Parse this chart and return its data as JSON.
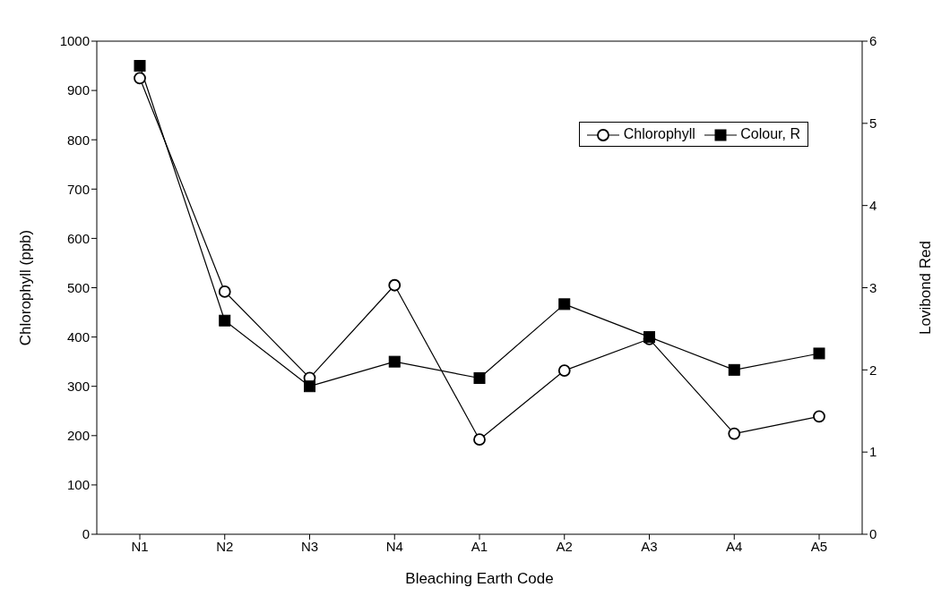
{
  "chart_data": {
    "type": "line",
    "xlabel": "Bleaching Earth Code",
    "ylabel": "Chlorophyll (ppb)",
    "y2label": "Lovibond Red",
    "categories": [
      "N1",
      "N2",
      "N3",
      "N4",
      "A1",
      "A2",
      "A3",
      "A4",
      "A5"
    ],
    "series": [
      {
        "name": "Chlorophyll",
        "color": "#000000",
        "marker": "circle",
        "values": [
          925,
          492,
          317,
          505,
          192,
          332,
          396,
          204,
          239
        ]
      },
      {
        "name": "Colour, R",
        "color": "#000000",
        "marker": "square",
        "axis": "y2",
        "values": [
          5.7,
          2.6,
          1.8,
          2.1,
          1.9,
          2.8,
          2.4,
          2.0,
          2.2
        ]
      }
    ],
    "ylim": [
      0,
      1000
    ],
    "yticks": [
      0,
      100,
      200,
      300,
      400,
      500,
      600,
      700,
      800,
      900,
      1000
    ],
    "y2lim": [
      0,
      6
    ],
    "y2ticks": [
      0,
      1,
      2,
      3,
      4,
      5,
      6
    ],
    "legend": "top right",
    "line_style": "solid"
  }
}
